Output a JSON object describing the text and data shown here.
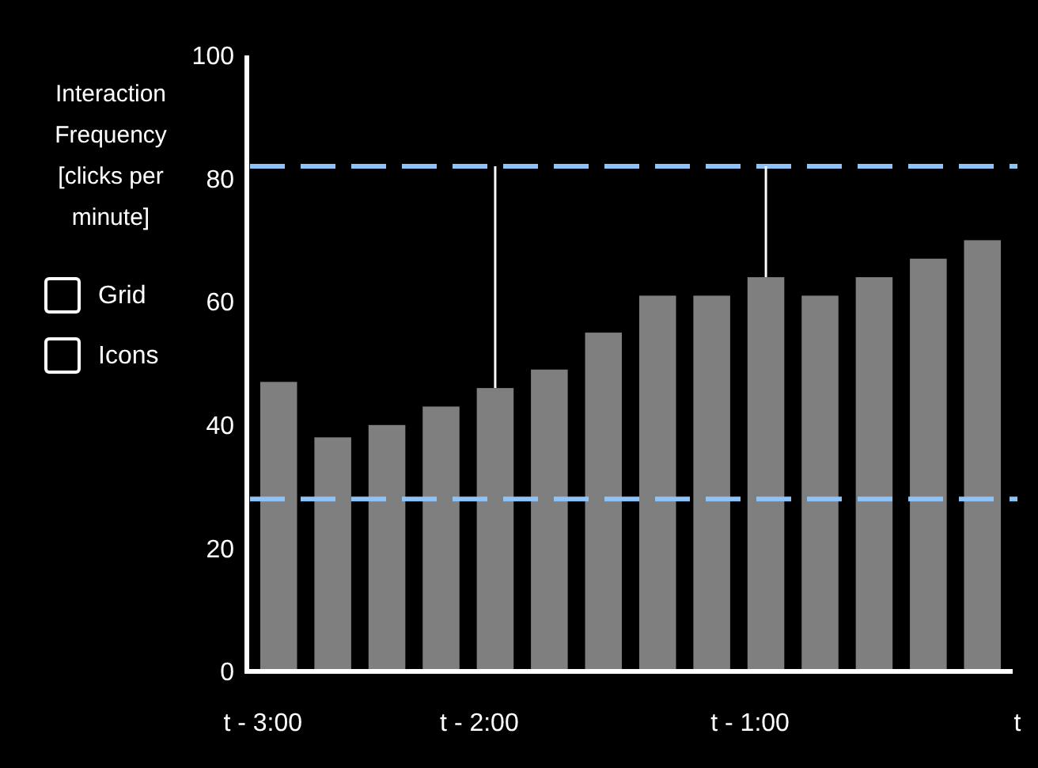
{
  "chart_data": {
    "type": "bar",
    "ylabel": "Interaction Frequency [clicks per minute]",
    "xlabel": "t",
    "categories": [
      "t - 3:00",
      null,
      null,
      null,
      "t - 2:00",
      null,
      null,
      null,
      null,
      "t - 1:00",
      null,
      null,
      null,
      null
    ],
    "series": [
      {
        "color": "#7f7f7f",
        "values": [
          47,
          38,
          40,
          43,
          46,
          49,
          55,
          61,
          61,
          64,
          61,
          64,
          67,
          70
        ]
      }
    ],
    "ylim": [
      0,
      100
    ],
    "yticks": [
      0,
      20,
      40,
      60,
      80,
      100
    ],
    "ref_lines": [
      {
        "axis": "y",
        "value": 82,
        "color": "#8fc3f7",
        "line_style": "dashed"
      },
      {
        "axis": "y",
        "value": 28,
        "color": "#8fc3f7",
        "line_style": "dashed"
      }
    ],
    "annotations": [
      "Grid",
      "Icons"
    ]
  }
}
